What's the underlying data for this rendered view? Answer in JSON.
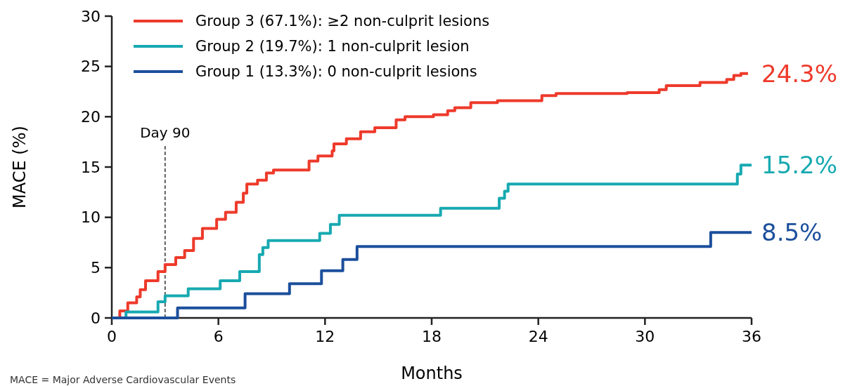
{
  "chart_data": {
    "type": "step",
    "xlabel": "Months",
    "ylabel": "MACE (%)",
    "xlim": [
      0,
      36
    ],
    "ylim": [
      0,
      30
    ],
    "xticks": [
      0,
      6,
      12,
      18,
      24,
      30,
      36
    ],
    "yticks": [
      0,
      5,
      10,
      15,
      20,
      25,
      30
    ],
    "grid": false,
    "legend": "top left",
    "marker": "none",
    "line_style": "solid",
    "series": [
      {
        "name": "Group 3 (67.1%): ≥2 non-culprit lesions",
        "color": "#ee3a2b",
        "x": [
          0,
          0.45,
          0.9,
          1.4,
          1.6,
          1.9,
          2.6,
          3.0,
          3.6,
          4.1,
          4.6,
          5.1,
          5.9,
          6.4,
          7.0,
          7.4,
          7.6,
          8.2,
          8.7,
          9.1,
          11.1,
          11.6,
          12.4,
          12.5,
          13.2,
          14.0,
          14.8,
          16.0,
          16.5,
          18.1,
          18.9,
          19.3,
          20.2,
          21.7,
          24.2,
          25.0,
          29.0,
          30.8,
          31.2,
          33.1,
          34.6,
          35.0,
          35.4,
          35.8
        ],
        "values": [
          0,
          0.7,
          1.5,
          2.1,
          2.8,
          3.7,
          4.6,
          5.3,
          6.0,
          6.7,
          7.9,
          8.9,
          9.8,
          10.5,
          11.5,
          12.4,
          13.3,
          13.7,
          14.4,
          14.7,
          15.6,
          16.1,
          16.6,
          17.3,
          17.8,
          18.5,
          18.9,
          19.7,
          20.0,
          20.2,
          20.6,
          20.9,
          21.4,
          21.6,
          22.1,
          22.3,
          22.4,
          22.7,
          23.1,
          23.4,
          23.7,
          24.1,
          24.3,
          24.3
        ]
      },
      {
        "name": "Group 2 (19.7%): 1 non-culprit lesion",
        "color": "#17a9b1",
        "x": [
          0,
          0.8,
          2.6,
          3.0,
          4.3,
          6.1,
          7.2,
          8.3,
          8.5,
          8.8,
          11.7,
          12.3,
          12.8,
          18.5,
          21.8,
          22.1,
          22.3,
          35.2,
          35.4,
          36
        ],
        "values": [
          0,
          0.6,
          1.6,
          2.2,
          2.9,
          3.7,
          4.6,
          6.3,
          7.0,
          7.7,
          8.4,
          9.3,
          10.2,
          10.9,
          11.9,
          12.6,
          13.3,
          14.3,
          15.2,
          15.2
        ]
      },
      {
        "name": "Group 1 (13.3%): 0 non-culprit lesions",
        "color": "#1c4f9c",
        "x": [
          0,
          3.7,
          7.5,
          10,
          11.8,
          13,
          13.8,
          33.7,
          36
        ],
        "values": [
          0,
          1,
          2.4,
          3.4,
          4.7,
          5.8,
          7.1,
          8.5,
          8.5
        ]
      }
    ],
    "ref_lines": [
      {
        "axis": "x",
        "value": 3,
        "label": "Day 90",
        "color": "#333333",
        "line_style": "dashed"
      }
    ],
    "annotations": [
      "24.3%",
      "15.2%",
      "8.5%",
      "MACE = Major Adverse Cardiovascular Events"
    ]
  }
}
